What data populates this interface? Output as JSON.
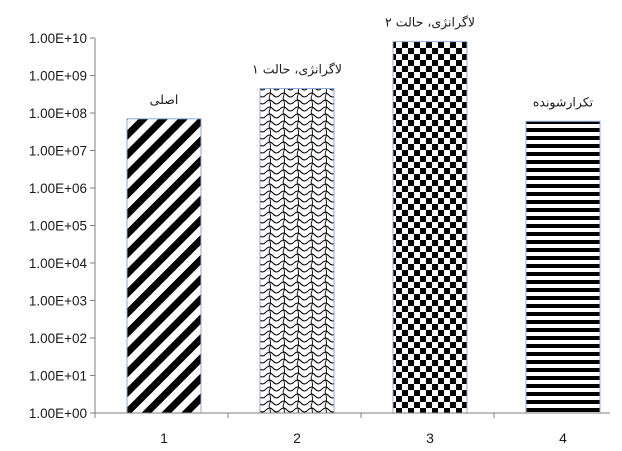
{
  "chart_data": {
    "type": "bar",
    "y_scale": "log",
    "ylim": [
      1,
      10000000000
    ],
    "y_ticks": [
      "1.00E+00",
      "1.00E+01",
      "1.00E+02",
      "1.00E+03",
      "1.00E+04",
      "1.00E+05",
      "1.00E+06",
      "1.00E+07",
      "1.00E+08",
      "1.00E+09",
      "1.00E+10"
    ],
    "categories": [
      "1",
      "2",
      "3",
      "4"
    ],
    "values": [
      70000000,
      450000000,
      8000000000,
      60000000
    ],
    "data_labels": [
      "اصلی",
      "لاگرانژی، حالت ۱",
      "لاگرانژی، حالت ۲",
      "تکرارشونده"
    ],
    "bar_patterns": [
      "diagonal-stripes",
      "chain-links",
      "checkerboard",
      "horizontal-stripes"
    ],
    "bar_border_color": "#8ea9db",
    "fill_color": "#000000",
    "grid": false,
    "legend": "none"
  }
}
